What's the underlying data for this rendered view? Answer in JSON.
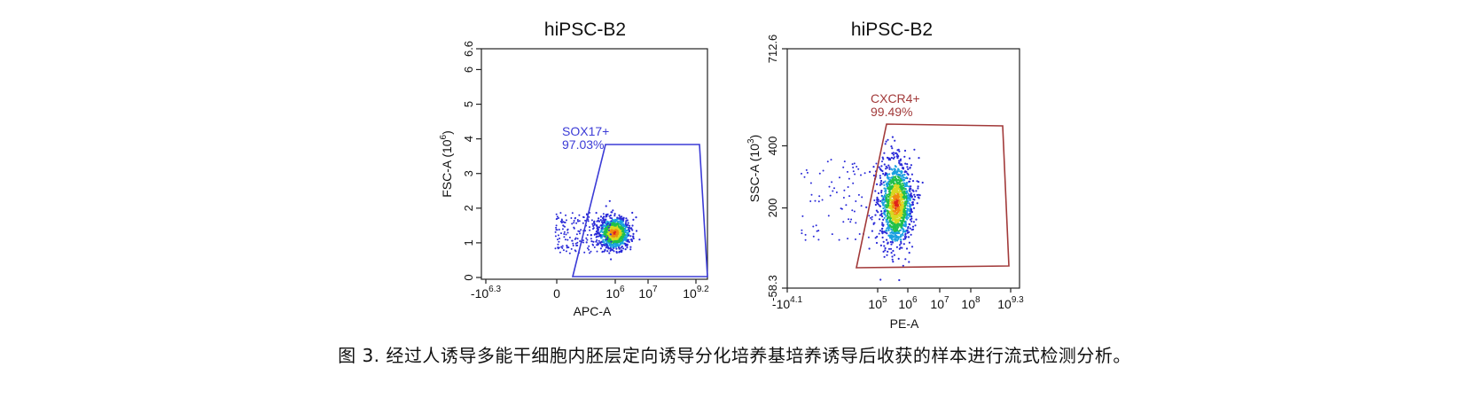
{
  "chart_data": [
    {
      "type": "scatter",
      "title": "hiPSC-B2",
      "xlabel": "APC-A",
      "ylabel": "FSC-A (10",
      "ylabel_exp": "6",
      "ylabel_close": ")",
      "x_ticks": [
        {
          "base": "-10",
          "exp": "6.3",
          "value": -6.3
        },
        {
          "base": "0",
          "exp": "",
          "value": 0
        },
        {
          "base": "10",
          "exp": "6",
          "value": 6
        },
        {
          "base": "10",
          "exp": "7",
          "value": 7
        },
        {
          "base": "10",
          "exp": "9.2",
          "value": 9.2
        }
      ],
      "y_ticks": [
        "0",
        "1",
        "2",
        "3",
        "4",
        "5",
        "6",
        "6.6"
      ],
      "y_tick_values": [
        0,
        1,
        2,
        3,
        4,
        5,
        6,
        6.6
      ],
      "ylim": [
        0,
        6.6
      ],
      "gate": {
        "label": "SOX17+",
        "percent": "97.03%",
        "color": "#3b3bd6"
      }
    },
    {
      "type": "scatter",
      "title": "hiPSC-B2",
      "xlabel": "PE-A",
      "ylabel": "SSC-A (10",
      "ylabel_exp": "3",
      "ylabel_close": ")",
      "x_ticks": [
        {
          "base": "-10",
          "exp": "4.1",
          "value": -4.1
        },
        {
          "base": "10",
          "exp": "5",
          "value": 5
        },
        {
          "base": "10",
          "exp": "6",
          "value": 6
        },
        {
          "base": "10",
          "exp": "7",
          "value": 7
        },
        {
          "base": "10",
          "exp": "8",
          "value": 8
        },
        {
          "base": "10",
          "exp": "9.3",
          "value": 9.3
        }
      ],
      "y_ticks": [
        "-58.3",
        "200",
        "400",
        "712.6"
      ],
      "y_tick_values": [
        -58.3,
        200,
        400,
        712.6
      ],
      "ylim": [
        -58.3,
        712.6
      ],
      "gate": {
        "label": "CXCR4+",
        "percent": "99.49%",
        "color": "#a23a3a"
      }
    }
  ],
  "caption": "图 3. 经过人诱导多能干细胞内胚层定向诱导分化培养基培养诱导后收获的样本进行流式检测分析。"
}
